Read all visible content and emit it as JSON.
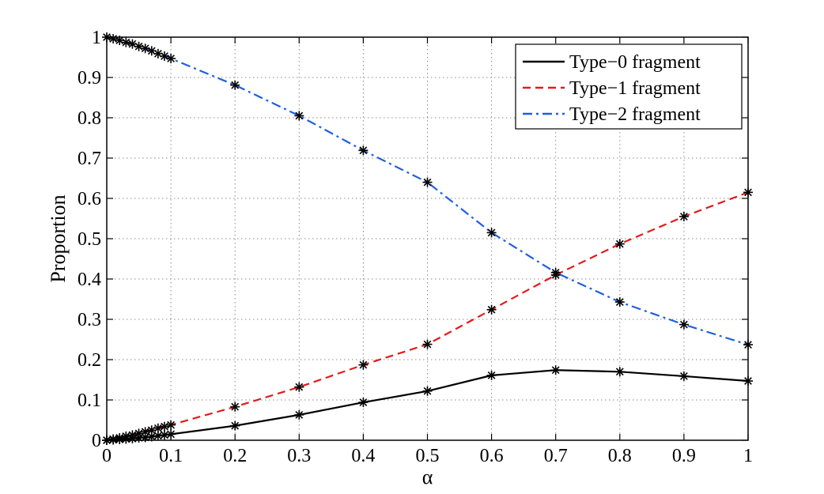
{
  "chart_data": {
    "type": "line",
    "xlabel": "α",
    "ylabel": "Proportion",
    "xlim": [
      0,
      1
    ],
    "ylim": [
      0,
      1
    ],
    "xticks": [
      0,
      0.1,
      0.2,
      0.3,
      0.4,
      0.5,
      0.6,
      0.7,
      0.8,
      0.9,
      1
    ],
    "xtick_labels": [
      "0",
      "0.1",
      "0.2",
      "0.3",
      "0.4",
      "0.5",
      "0.6",
      "0.7",
      "0.8",
      "0.9",
      "1"
    ],
    "yticks": [
      0,
      0.1,
      0.2,
      0.3,
      0.4,
      0.5,
      0.6,
      0.7,
      0.8,
      0.9,
      1
    ],
    "ytick_labels": [
      "0",
      "0.1",
      "0.2",
      "0.3",
      "0.4",
      "0.5",
      "0.6",
      "0.7",
      "0.8",
      "0.9",
      "1"
    ],
    "grid": true,
    "legend_position": "top-right",
    "marker": "asterisk",
    "series": [
      {
        "name": "Type−0 fragment",
        "color": "#000000",
        "style": "solid",
        "x": [
          0,
          0.01,
          0.02,
          0.03,
          0.04,
          0.05,
          0.06,
          0.07,
          0.08,
          0.09,
          0.1,
          0.2,
          0.3,
          0.4,
          0.5,
          0.6,
          0.7,
          0.8,
          0.9,
          1
        ],
        "y": [
          0,
          0.001,
          0.002,
          0.003,
          0.004,
          0.006,
          0.007,
          0.009,
          0.011,
          0.013,
          0.015,
          0.036,
          0.063,
          0.094,
          0.122,
          0.161,
          0.174,
          0.17,
          0.159,
          0.147
        ]
      },
      {
        "name": "Type−1 fragment",
        "color": "#e41a1c",
        "style": "dashed",
        "x": [
          0,
          0.01,
          0.02,
          0.03,
          0.04,
          0.05,
          0.06,
          0.07,
          0.08,
          0.09,
          0.1,
          0.2,
          0.3,
          0.4,
          0.5,
          0.6,
          0.7,
          0.8,
          0.9,
          1
        ],
        "y": [
          0,
          0.003,
          0.006,
          0.01,
          0.013,
          0.017,
          0.021,
          0.025,
          0.03,
          0.034,
          0.038,
          0.083,
          0.132,
          0.187,
          0.238,
          0.324,
          0.41,
          0.487,
          0.555,
          0.615
        ]
      },
      {
        "name": "Type−2 fragment",
        "color": "#1f5fe0",
        "style": "dashdot",
        "x": [
          0,
          0.01,
          0.02,
          0.03,
          0.04,
          0.05,
          0.06,
          0.07,
          0.08,
          0.09,
          0.1,
          0.2,
          0.3,
          0.4,
          0.5,
          0.6,
          0.7,
          0.8,
          0.9,
          1
        ],
        "y": [
          1,
          0.996,
          0.992,
          0.987,
          0.983,
          0.977,
          0.972,
          0.966,
          0.959,
          0.953,
          0.947,
          0.881,
          0.805,
          0.719,
          0.64,
          0.515,
          0.416,
          0.343,
          0.287,
          0.237
        ]
      }
    ]
  }
}
